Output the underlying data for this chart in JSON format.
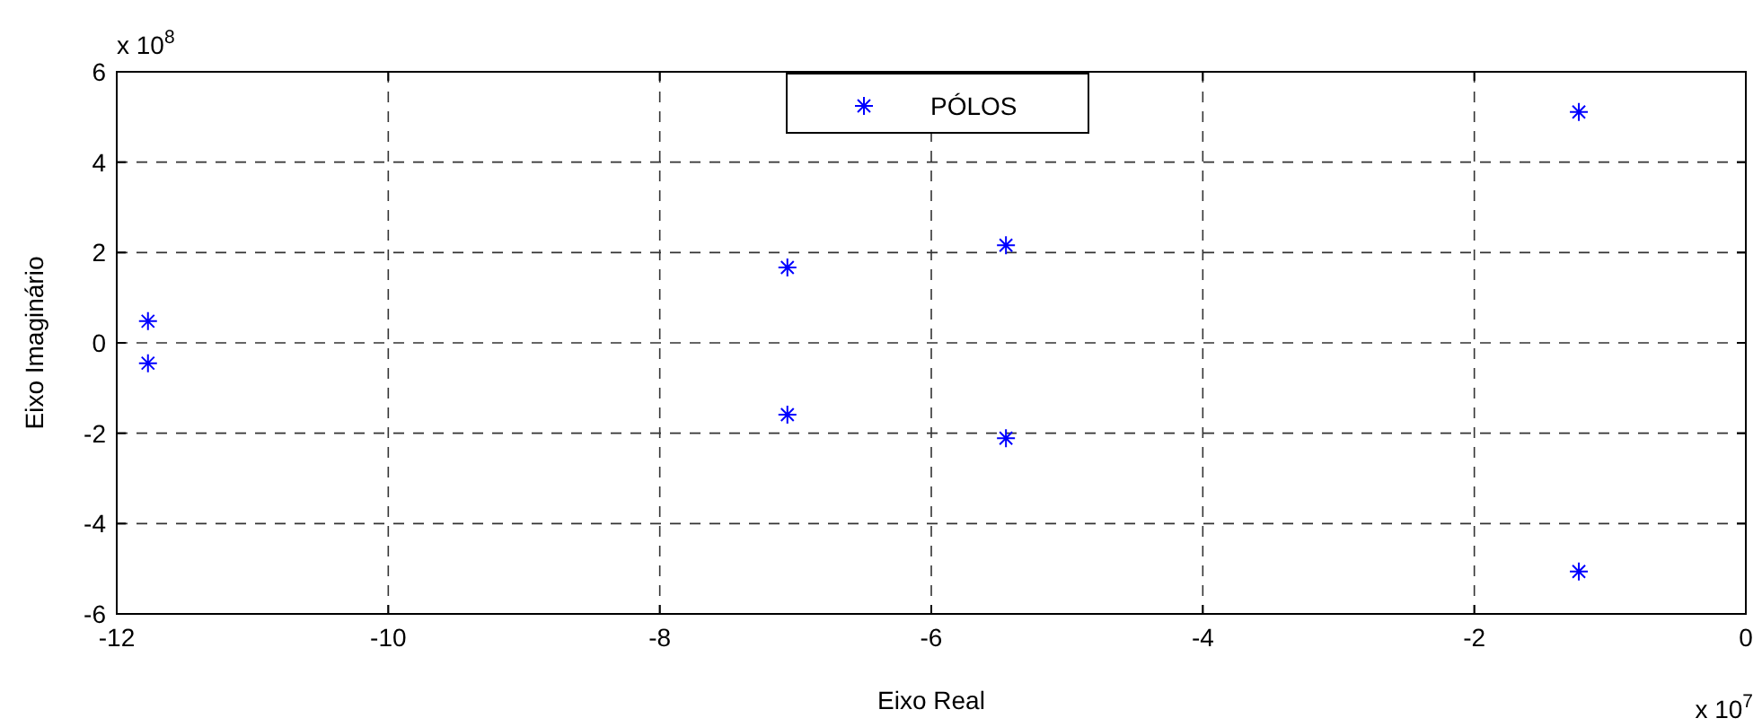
{
  "chart_data": {
    "type": "scatter",
    "xlabel": "Eixo Real",
    "ylabel": "Eixo Imaginário",
    "x": [
      -11.77,
      -11.77,
      -7.06,
      -7.06,
      -5.45,
      -5.45,
      -1.23,
      -1.23
    ],
    "series": [
      {
        "name": "PÓLOS",
        "color": "#0000ff",
        "values": [
          0.48,
          -0.45,
          1.67,
          -1.59,
          2.16,
          -2.11,
          5.11,
          -5.06
        ]
      }
    ],
    "xlim": [
      -12,
      0
    ],
    "xticks": [
      -12,
      -10,
      -8,
      -6,
      -4,
      -2,
      0
    ],
    "ylim": [
      -6,
      6
    ],
    "yticks": [
      -6,
      -4,
      -2,
      0,
      2,
      4,
      6
    ],
    "annotations": [
      "x 10$^{8}$",
      "x 10$^{7}$"
    ],
    "grid": true,
    "legend": "top",
    "marker": "cross"
  }
}
